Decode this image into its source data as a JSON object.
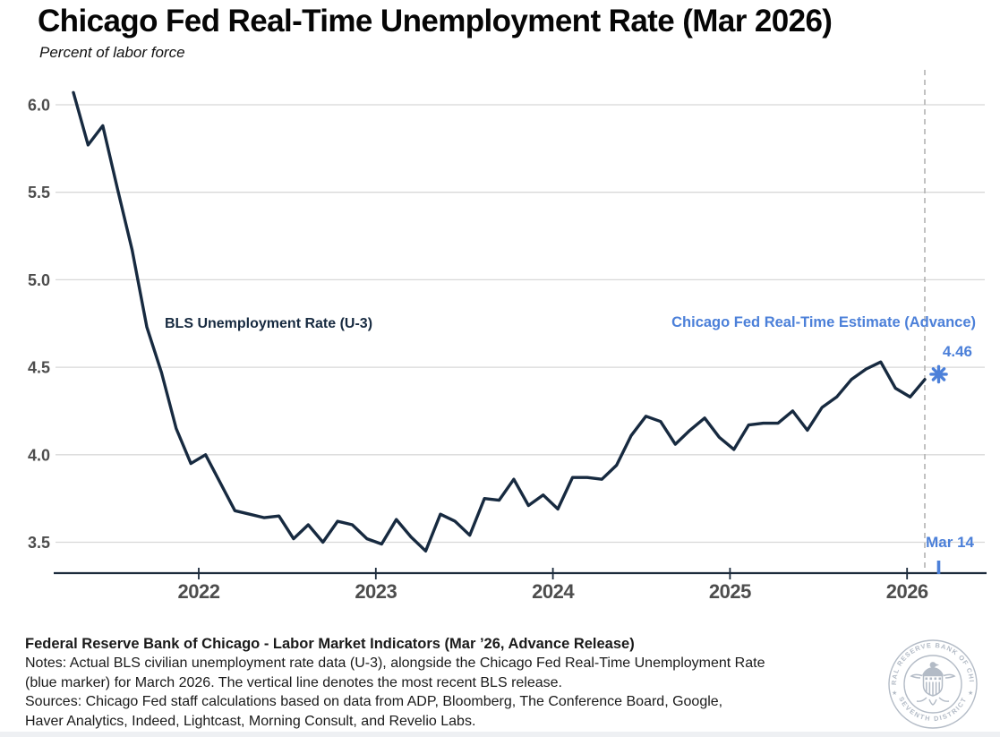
{
  "title": "Chicago Fed Real-Time Unemployment Rate (Mar 2026)",
  "subtitle": "Percent of labor force",
  "colors": {
    "line": "#172A40",
    "accent_blue": "#4C80D9",
    "gridline": "#D8D8D8",
    "dashed_line": "#B3B3B3",
    "axis": "#1C2B3C",
    "tick_label": "#4D4D4D",
    "seal": "#B3BBC6"
  },
  "chart_data": {
    "type": "line",
    "title": "Chicago Fed Real-Time Unemployment Rate (Mar 2026)",
    "ylabel": "Percent of labor force",
    "ylim": [
      3.32,
      6.18
    ],
    "x_range": [
      "2021-04",
      "2026-03"
    ],
    "grid": "horizontal",
    "legend_position": "in-plot annotations",
    "y_ticks": [
      "3.5",
      "4.0",
      "4.5",
      "5.0",
      "5.5",
      "6.0"
    ],
    "x_ticks": [
      "2022",
      "2023",
      "2024",
      "2025",
      "2026"
    ],
    "series": [
      {
        "name": "BLS Unemployment Rate (U-3)",
        "frequency": "monthly",
        "start_month": "2021-04",
        "end_month": "2026-02",
        "values": [
          6.07,
          5.77,
          5.88,
          5.52,
          5.17,
          4.73,
          4.47,
          4.15,
          3.95,
          4.0,
          3.84,
          3.68,
          3.66,
          3.64,
          3.65,
          3.52,
          3.6,
          3.5,
          3.62,
          3.6,
          3.52,
          3.49,
          3.63,
          3.53,
          3.45,
          3.66,
          3.62,
          3.54,
          3.75,
          3.74,
          3.86,
          3.71,
          3.77,
          3.69,
          3.87,
          3.87,
          3.86,
          3.94,
          4.11,
          4.22,
          4.19,
          4.06,
          4.14,
          4.21,
          4.1,
          4.03,
          4.17,
          4.18,
          4.18,
          4.25,
          4.14,
          4.27,
          4.33,
          4.43,
          4.49,
          4.53,
          4.38,
          4.33,
          4.43
        ]
      }
    ],
    "marker": {
      "name": "Chicago Fed Real-Time Estimate (Advance)",
      "month": "2026-03",
      "value": 4.46,
      "value_label": "4.46",
      "symbol": "asterisk"
    },
    "release_line": {
      "label": "Mar 14",
      "style": "vertical dashed"
    }
  },
  "annotations": {
    "series_label": "BLS Unemployment Rate (U-3)",
    "estimate_label": "Chicago Fed Real-Time Estimate (Advance)",
    "estimate_value": "4.46",
    "release_label": "Mar 14"
  },
  "footer": {
    "bold_line": "Federal Reserve Bank of Chicago - Labor Market Indicators (Mar ’26, Advance Release)",
    "notes_lines": [
      "Notes: Actual BLS civilian unemployment rate data (U-3), alongside the Chicago Fed Real-Time Unemployment Rate",
      "(blue marker) for March 2026. The vertical line denotes the most recent BLS release."
    ],
    "sources_lines": [
      "Sources: Chicago Fed staff calculations based on data from ADP, Bloomberg, The Conference Board, Google,",
      "Haver Analytics, Indeed, Lightcast, Morning Consult, and Revelio Labs."
    ]
  },
  "seal": {
    "text_top": "FEDERAL RESERVE BANK OF CHICAGO",
    "text_bottom": "SEVENTH DISTRICT",
    "star": "★"
  }
}
